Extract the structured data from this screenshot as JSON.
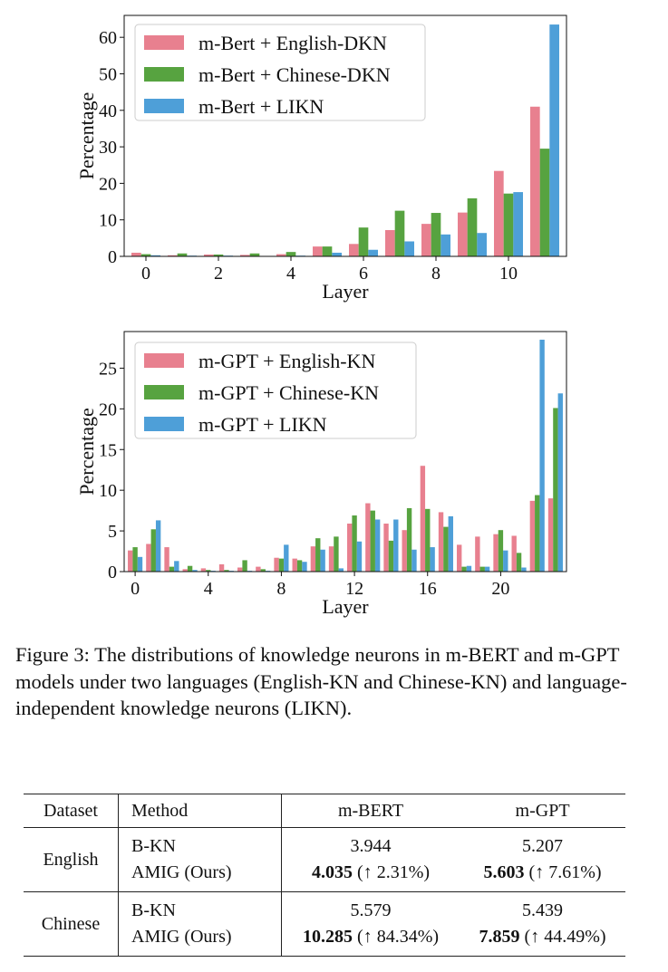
{
  "colors": {
    "english": "#e8808f",
    "chinese": "#57a340",
    "likn": "#4e9fd8"
  },
  "chart_data": [
    {
      "type": "bar",
      "xlabel": "Layer",
      "ylabel": "Percentage",
      "xticks": [
        "0",
        "2",
        "4",
        "6",
        "8",
        "10"
      ],
      "yticks": [
        "0",
        "10",
        "20",
        "30",
        "40",
        "50",
        "60"
      ],
      "ylim": [
        0,
        66
      ],
      "legend_position": "top-left",
      "categories": [
        0,
        1,
        2,
        3,
        4,
        5,
        6,
        7,
        8,
        9,
        10,
        11
      ],
      "series": [
        {
          "name": "m-Bert + English-DKN",
          "color_key": "english",
          "values": [
            1.0,
            0.3,
            0.5,
            0.4,
            0.6,
            2.7,
            3.4,
            7.2,
            8.9,
            12.0,
            23.4,
            41.0
          ]
        },
        {
          "name": "m-Bert + Chinese-DKN",
          "color_key": "chinese",
          "values": [
            0.6,
            0.8,
            0.5,
            0.8,
            1.2,
            2.7,
            7.9,
            12.5,
            11.9,
            15.9,
            17.2,
            29.5
          ]
        },
        {
          "name": "m-Bert + LIKN",
          "color_key": "likn",
          "values": [
            0.3,
            0.2,
            0.2,
            0.1,
            0.2,
            1.0,
            1.8,
            4.1,
            6.0,
            6.4,
            17.6,
            63.5
          ]
        }
      ]
    },
    {
      "type": "bar",
      "xlabel": "Layer",
      "ylabel": "Percentage",
      "xticks": [
        "0",
        "4",
        "8",
        "12",
        "16",
        "20"
      ],
      "yticks": [
        "0",
        "5",
        "10",
        "15",
        "20",
        "25"
      ],
      "ylim": [
        0,
        29.5
      ],
      "legend_position": "top-left",
      "categories": [
        0,
        1,
        2,
        3,
        4,
        5,
        6,
        7,
        8,
        9,
        10,
        11,
        12,
        13,
        14,
        15,
        16,
        17,
        18,
        19,
        20,
        21,
        22,
        23
      ],
      "series": [
        {
          "name": "m-GPT + English-KN",
          "color_key": "english",
          "values": [
            2.6,
            3.4,
            3.0,
            0.3,
            0.4,
            0.9,
            0.5,
            0.6,
            1.7,
            1.6,
            3.1,
            3.1,
            5.9,
            8.4,
            5.9,
            5.1,
            13.0,
            7.3,
            3.3,
            4.3,
            4.6,
            4.4,
            8.7,
            9.0
          ]
        },
        {
          "name": "m-GPT + Chinese-KN",
          "color_key": "chinese",
          "values": [
            3.0,
            5.2,
            0.6,
            0.7,
            0.2,
            0.2,
            1.4,
            0.3,
            1.6,
            1.4,
            4.1,
            4.3,
            6.9,
            7.5,
            3.8,
            7.8,
            7.7,
            5.5,
            0.6,
            0.6,
            5.1,
            2.3,
            9.4,
            20.1
          ]
        },
        {
          "name": "m-GPT + LIKN",
          "color_key": "likn",
          "values": [
            1.8,
            6.3,
            1.3,
            0.2,
            0.1,
            0.1,
            0.1,
            0.1,
            3.3,
            1.2,
            2.7,
            0.4,
            3.7,
            6.4,
            6.4,
            2.7,
            3.0,
            6.8,
            0.7,
            0.6,
            2.6,
            0.5,
            28.5,
            21.9
          ]
        }
      ]
    }
  ],
  "caption": "Figure 3: The distributions of knowledge neurons in m-BERT and m-GPT models under two languages (English-KN and Chinese-KN) and language-independent knowledge neurons (LIKN).",
  "table": {
    "headers": {
      "dataset": "Dataset",
      "method": "Method",
      "mbert": "m-BERT",
      "mgpt": "m-GPT"
    },
    "groups": [
      {
        "dataset": "English",
        "rows": [
          {
            "method": "B-KN",
            "mbert": "3.944",
            "mgpt": "5.207"
          },
          {
            "method": "AMIG (Ours)",
            "mbert_bold": "4.035",
            "mbert_gain": " (↑ 2.31%)",
            "mgpt_bold": "5.603",
            "mgpt_gain": " (↑ 7.61%)"
          }
        ]
      },
      {
        "dataset": "Chinese",
        "rows": [
          {
            "method": "B-KN",
            "mbert": "5.579",
            "mgpt": "5.439"
          },
          {
            "method": "AMIG (Ours)",
            "mbert_bold": "10.285",
            "mbert_gain": " (↑ 84.34%)",
            "mgpt_bold": "7.859",
            "mgpt_gain": " (↑ 44.49%)"
          }
        ]
      }
    ]
  }
}
